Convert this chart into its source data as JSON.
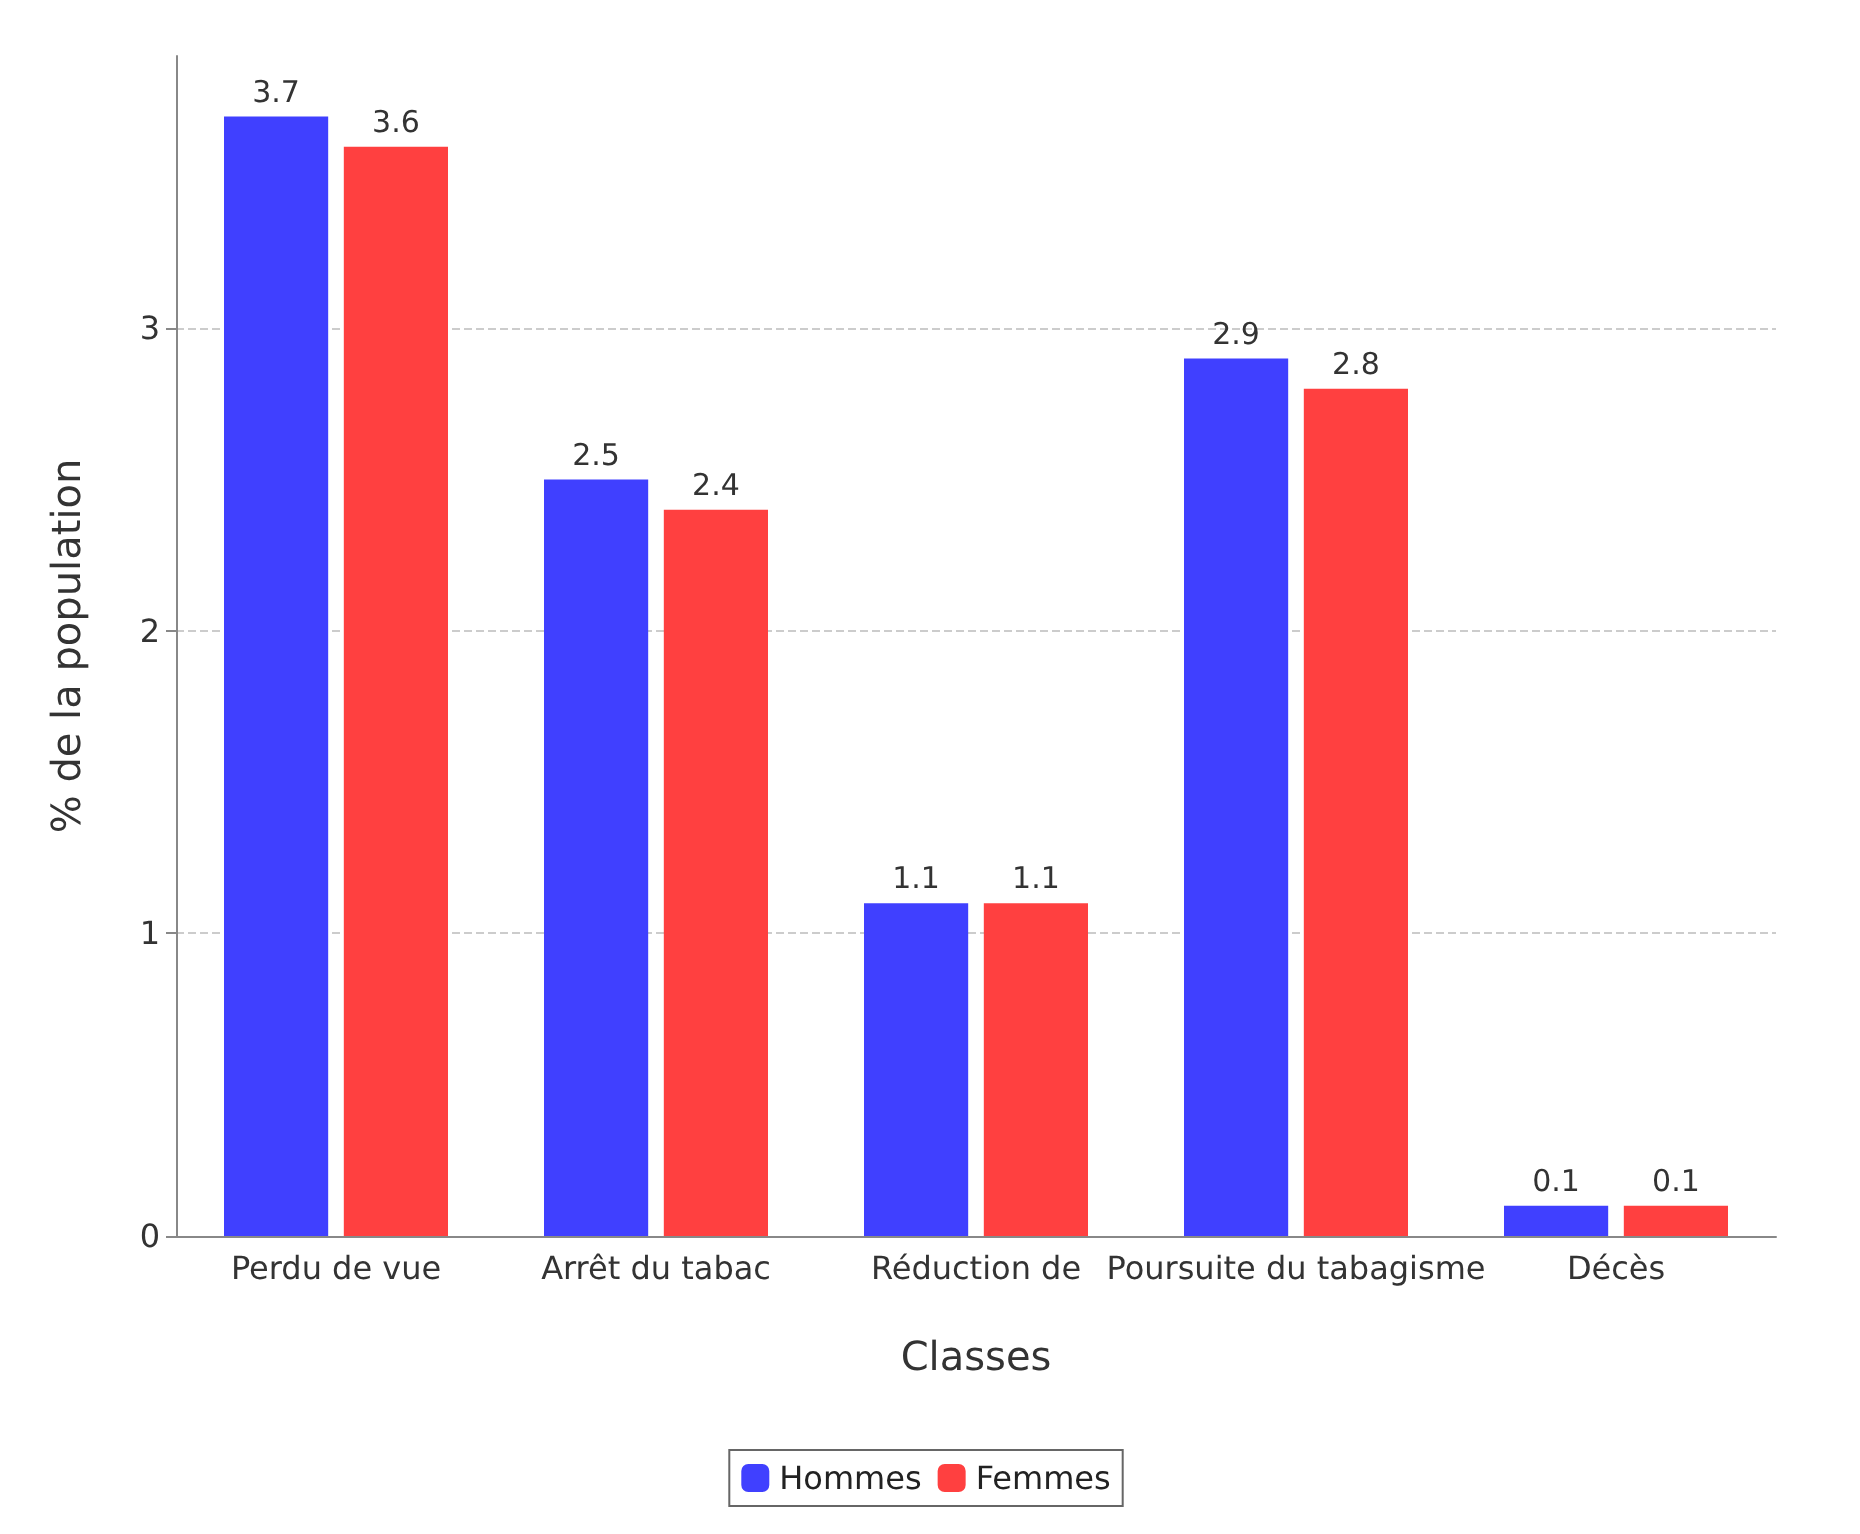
{
  "chart_data": {
    "type": "bar",
    "xlabel": "Classes",
    "ylabel": "% de la population",
    "categories": [
      "Perdu de vue",
      "Arrêt du tabac",
      "Réduction de",
      "Poursuite du tabagisme",
      "Décès"
    ],
    "series": [
      {
        "name": "Hommes",
        "color": "#4040ff",
        "values": [
          3.7,
          2.5,
          1.1,
          2.9,
          0.1
        ]
      },
      {
        "name": "Femmes",
        "color": "#ff4040",
        "values": [
          3.6,
          2.4,
          1.1,
          2.8,
          0.1
        ]
      }
    ],
    "ylim": [
      0,
      3.9
    ],
    "yticks": [
      0,
      1,
      2,
      3
    ],
    "grid": "y",
    "legend": "bottom",
    "data_labels": true
  }
}
